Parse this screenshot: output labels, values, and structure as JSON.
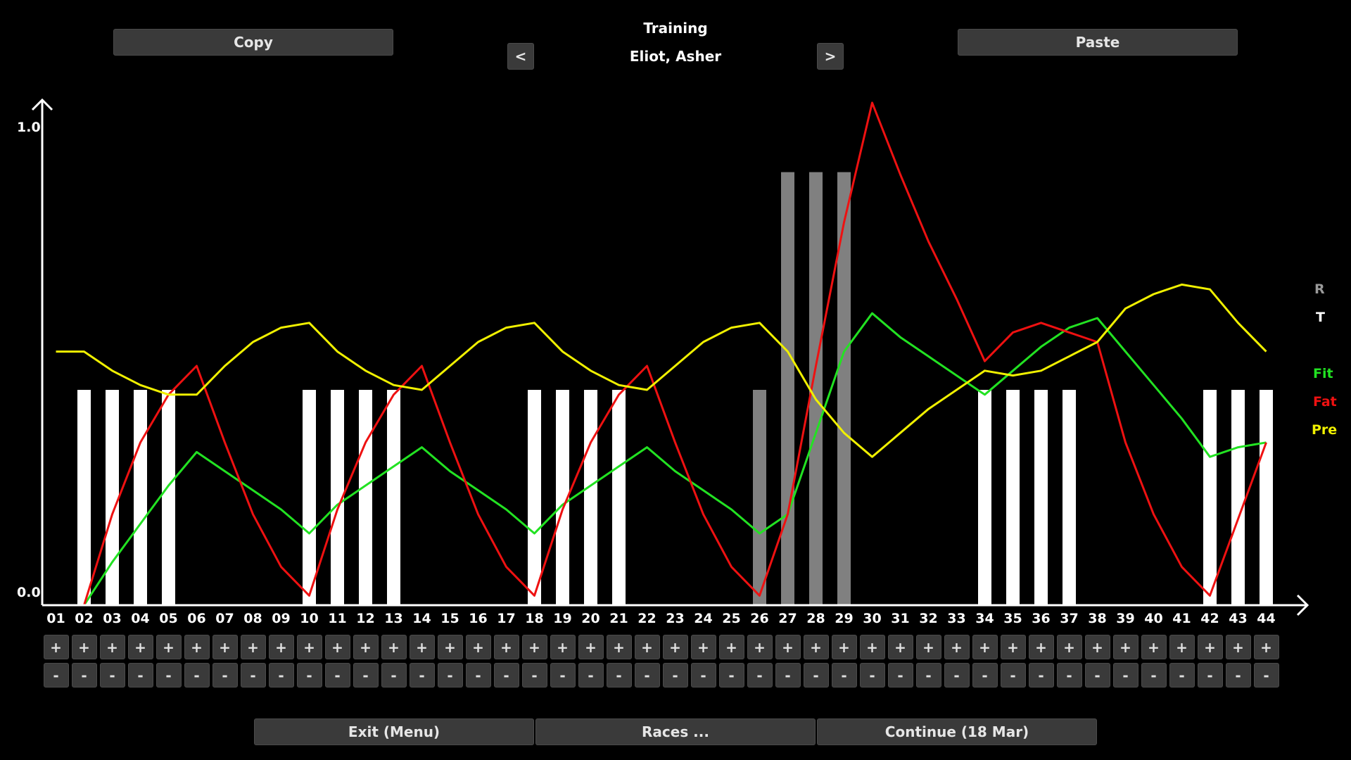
{
  "header": {
    "copy_label": "Copy",
    "paste_label": "Paste",
    "title": "Training",
    "athlete": "Eliot, Asher",
    "prev_label": "<",
    "next_label": ">"
  },
  "legend": {
    "r": "R",
    "t": "T",
    "fit": "Fit",
    "fat": "Fat",
    "pre": "Pre"
  },
  "colors": {
    "fit": "#22e222",
    "fat": "#ee1111",
    "pre": "#f0f000",
    "training_bar": "#ffffff",
    "race_bar": "#808080",
    "legend_r": "#9a9a9a"
  },
  "footer": {
    "exit_label": "Exit (Menu)",
    "races_label": "Races ...",
    "continue_label": "Continue (18 Mar)"
  },
  "controls": {
    "plus": "+",
    "minus": "-"
  },
  "chart_data": {
    "type": "bar+line",
    "ylim": [
      0,
      1
    ],
    "yticks": [
      "0.0",
      "1.0"
    ],
    "categories": [
      "01",
      "02",
      "03",
      "04",
      "05",
      "06",
      "07",
      "08",
      "09",
      "10",
      "11",
      "12",
      "13",
      "14",
      "15",
      "16",
      "17",
      "18",
      "19",
      "20",
      "21",
      "22",
      "23",
      "24",
      "25",
      "26",
      "27",
      "28",
      "29",
      "30",
      "31",
      "32",
      "33",
      "34",
      "35",
      "36",
      "37",
      "38",
      "39",
      "40",
      "41",
      "42",
      "43",
      "44"
    ],
    "bars": [
      {
        "series": "T",
        "values": [
          0,
          0.45,
          0.45,
          0.45,
          0.45,
          0,
          0,
          0,
          0,
          0.45,
          0.45,
          0.45,
          0.45,
          0,
          0,
          0,
          0,
          0.45,
          0.45,
          0.45,
          0.45,
          0,
          0,
          0,
          0,
          0,
          0,
          0,
          0,
          0,
          0,
          0,
          0,
          0.45,
          0.45,
          0.45,
          0.45,
          0,
          0,
          0,
          0,
          0.45,
          0.45,
          0.45
        ]
      },
      {
        "series": "R",
        "values": [
          0,
          0,
          0,
          0,
          0,
          0,
          0,
          0,
          0,
          0,
          0,
          0,
          0,
          0,
          0,
          0,
          0,
          0,
          0,
          0,
          0,
          0,
          0,
          0,
          0,
          0.45,
          0.905,
          0.905,
          0.905,
          0,
          0,
          0,
          0,
          0,
          0,
          0,
          0,
          0,
          0,
          0,
          0,
          0,
          0,
          0
        ]
      }
    ],
    "series": [
      {
        "name": "Fit",
        "values": [
          0,
          0,
          0.09,
          0.17,
          0.25,
          0.32,
          0.28,
          0.24,
          0.2,
          0.15,
          0.21,
          0.25,
          0.29,
          0.33,
          0.28,
          0.24,
          0.2,
          0.15,
          0.21,
          0.25,
          0.29,
          0.33,
          0.28,
          0.24,
          0.2,
          0.15,
          0.19,
          0.36,
          0.53,
          0.61,
          0.56,
          0.52,
          0.48,
          0.44,
          0.49,
          0.54,
          0.58,
          0.6,
          0.53,
          0.46,
          0.39,
          0.31,
          0.33,
          0.34
        ]
      },
      {
        "name": "Fat",
        "values": [
          0,
          0,
          0.19,
          0.34,
          0.44,
          0.5,
          0.34,
          0.19,
          0.08,
          0.02,
          0.2,
          0.34,
          0.44,
          0.5,
          0.34,
          0.19,
          0.08,
          0.02,
          0.2,
          0.34,
          0.44,
          0.5,
          0.34,
          0.19,
          0.08,
          0.02,
          0.19,
          0.5,
          0.8,
          1.05,
          0.9,
          0.76,
          0.64,
          0.51,
          0.57,
          0.59,
          0.57,
          0.55,
          0.34,
          0.19,
          0.08,
          0.02,
          0.18,
          0.34
        ]
      },
      {
        "name": "Pre",
        "values": [
          0.53,
          0.53,
          0.49,
          0.46,
          0.44,
          0.44,
          0.5,
          0.55,
          0.58,
          0.59,
          0.53,
          0.49,
          0.46,
          0.45,
          0.5,
          0.55,
          0.58,
          0.59,
          0.53,
          0.49,
          0.46,
          0.45,
          0.5,
          0.55,
          0.58,
          0.59,
          0.53,
          0.43,
          0.36,
          0.31,
          0.36,
          0.41,
          0.45,
          0.49,
          0.48,
          0.49,
          0.52,
          0.55,
          0.62,
          0.65,
          0.67,
          0.66,
          0.59,
          0.53
        ]
      }
    ]
  }
}
